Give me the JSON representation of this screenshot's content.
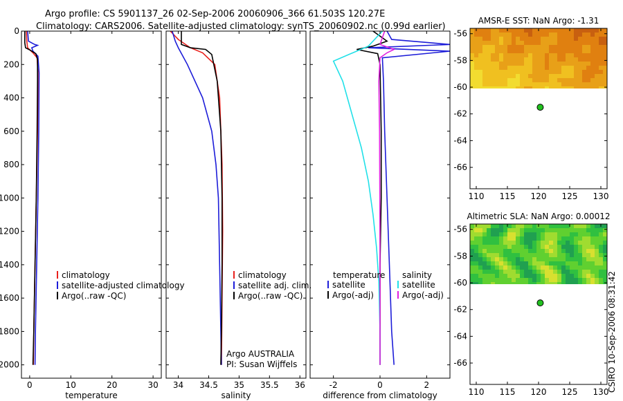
{
  "header": {
    "title_line1": "Argo profile: CS 5901137_26 02-Sep-2006 20060906_366 61.503S 120.27E",
    "title_line2": "Climatology: CARS2006. Satellite-adjusted climatology: synTS_20060902.nc (0.99d earlier)"
  },
  "footer_vertical": "CSIRO 10-Sep-2006 08:31:42",
  "colors": {
    "climatology": "#e8201c",
    "satellite": "#1c1cd8",
    "argo": "#000000",
    "temp_diff_sat": "#1c1cd8",
    "sal_diff_sat": "#20e0e8",
    "sal_diff_argo": "#e020e0"
  },
  "chart_data": [
    {
      "type": "line",
      "name": "temperature-profile",
      "xlabel": "temperature",
      "ylabel": "",
      "xlim": [
        -2,
        32
      ],
      "ylim": [
        2080,
        0
      ],
      "y_inverted": true,
      "xticks": [
        0,
        10,
        20,
        30
      ],
      "yticks": [
        0,
        200,
        400,
        600,
        800,
        1000,
        1200,
        1400,
        1600,
        1800,
        2000
      ],
      "legend": [
        "climatology",
        "satellite-adjusted climatology",
        "Argo(..raw -QC)"
      ],
      "series": [
        {
          "name": "climatology",
          "color_key": "climatology",
          "points": [
            [
              -0.8,
              0
            ],
            [
              -0.7,
              60
            ],
            [
              -0.5,
              100
            ],
            [
              0.8,
              130
            ],
            [
              1.8,
              160
            ],
            [
              2.0,
              250
            ],
            [
              1.9,
              600
            ],
            [
              1.6,
              1000
            ],
            [
              1.3,
              1400
            ],
            [
              1.0,
              1800
            ],
            [
              0.9,
              2000
            ]
          ]
        },
        {
          "name": "satellite-adjusted climatology",
          "color_key": "satellite",
          "points": [
            [
              -0.5,
              0
            ],
            [
              -0.3,
              60
            ],
            [
              1.2,
              80
            ],
            [
              1.9,
              85
            ],
            [
              0.5,
              100
            ],
            [
              0.8,
              120
            ],
            [
              2.0,
              150
            ],
            [
              2.3,
              250
            ],
            [
              2.2,
              600
            ],
            [
              2.0,
              1000
            ],
            [
              1.7,
              1400
            ],
            [
              1.4,
              1800
            ],
            [
              1.3,
              2000
            ]
          ]
        },
        {
          "name": "Argo(..raw -QC)",
          "color_key": "argo",
          "points": [
            [
              -1.2,
              0
            ],
            [
              -1.2,
              70
            ],
            [
              -1.0,
              100
            ],
            [
              0.2,
              115
            ],
            [
              1.5,
              135
            ],
            [
              1.9,
              170
            ],
            [
              1.9,
              300
            ],
            [
              1.8,
              600
            ],
            [
              1.6,
              1000
            ],
            [
              1.3,
              1400
            ],
            [
              1.0,
              1800
            ],
            [
              0.8,
              2000
            ]
          ]
        }
      ]
    },
    {
      "type": "line",
      "name": "salinity-profile",
      "xlabel": "salinity",
      "ylabel": "",
      "xlim": [
        33.8,
        36.1
      ],
      "ylim": [
        2080,
        0
      ],
      "y_inverted": true,
      "xticks": [
        34,
        34.5,
        35,
        35.5,
        36
      ],
      "legend": [
        "climatology",
        "satellite adj. clim.",
        "Argo(..raw -QC)"
      ],
      "annotations": [
        "Argo AUSTRALIA",
        "PI: Susan Wijffels"
      ],
      "series": [
        {
          "name": "climatology",
          "color_key": "climatology",
          "points": [
            [
              33.87,
              0
            ],
            [
              34.0,
              50
            ],
            [
              34.2,
              100
            ],
            [
              34.4,
              130
            ],
            [
              34.6,
              200
            ],
            [
              34.68,
              400
            ],
            [
              34.72,
              800
            ],
            [
              34.73,
              1200
            ],
            [
              34.72,
              1600
            ],
            [
              34.71,
              2000
            ]
          ]
        },
        {
          "name": "satellite adj. clim.",
          "color_key": "satellite",
          "points": [
            [
              33.9,
              0
            ],
            [
              33.95,
              60
            ],
            [
              34.0,
              100
            ],
            [
              34.15,
              200
            ],
            [
              34.4,
              400
            ],
            [
              34.55,
              600
            ],
            [
              34.62,
              800
            ],
            [
              34.66,
              1000
            ],
            [
              34.68,
              1400
            ],
            [
              34.7,
              1800
            ],
            [
              34.71,
              2000
            ]
          ]
        },
        {
          "name": "Argo(..raw -QC)",
          "color_key": "argo",
          "points": [
            [
              34.05,
              0
            ],
            [
              34.05,
              80
            ],
            [
              34.2,
              100
            ],
            [
              34.45,
              110
            ],
            [
              34.55,
              140
            ],
            [
              34.64,
              300
            ],
            [
              34.7,
              600
            ],
            [
              34.72,
              1000
            ],
            [
              34.72,
              1400
            ],
            [
              34.71,
              1800
            ],
            [
              34.7,
              2000
            ]
          ]
        }
      ]
    },
    {
      "type": "line",
      "name": "difference-profile",
      "xlabel": "difference from climatology",
      "ylabel": "",
      "xlim": [
        -3,
        3
      ],
      "ylim": [
        2080,
        0
      ],
      "y_inverted": true,
      "xticks": [
        -2,
        0,
        2
      ],
      "legend": [
        "temperature",
        "satellite",
        "Argo(-adj)",
        "salinity",
        "satellite",
        "Argo(-adj)"
      ],
      "series": [
        {
          "name": "temperature satellite",
          "color_key": "temp_diff_sat",
          "points": [
            [
              0.3,
              0
            ],
            [
              0.5,
              50
            ],
            [
              3.0,
              80
            ],
            [
              -0.5,
              100
            ],
            [
              3.0,
              120
            ],
            [
              0.1,
              160
            ],
            [
              0.15,
              300
            ],
            [
              0.2,
              600
            ],
            [
              0.3,
              1000
            ],
            [
              0.4,
              1400
            ],
            [
              0.5,
              1800
            ],
            [
              0.6,
              2000
            ]
          ]
        },
        {
          "name": "temperature Argo(-adj)",
          "color_key": "argo",
          "points": [
            [
              -0.3,
              0
            ],
            [
              0.3,
              60
            ],
            [
              -0.3,
              90
            ],
            [
              -1.0,
              110
            ],
            [
              -0.1,
              135
            ],
            [
              0.0,
              200
            ],
            [
              0.05,
              600
            ],
            [
              0.05,
              1000
            ],
            [
              0.0,
              1400
            ],
            [
              0.0,
              1800
            ],
            [
              0.0,
              2000
            ]
          ]
        },
        {
          "name": "salinity satellite",
          "color_key": "sal_diff_sat",
          "points": [
            [
              0.1,
              0
            ],
            [
              -0.5,
              90
            ],
            [
              -2.0,
              180
            ],
            [
              -1.6,
              300
            ],
            [
              -1.2,
              500
            ],
            [
              -0.8,
              700
            ],
            [
              -0.5,
              900
            ],
            [
              -0.3,
              1100
            ],
            [
              -0.15,
              1300
            ],
            [
              -0.05,
              1500
            ],
            [
              0.0,
              1800
            ],
            [
              0.0,
              2000
            ]
          ]
        },
        {
          "name": "salinity Argo(-adj)",
          "color_key": "sal_diff_argo",
          "points": [
            [
              0.2,
              0
            ],
            [
              0.0,
              80
            ],
            [
              0.6,
              110
            ],
            [
              0.3,
              130
            ],
            [
              0.0,
              160
            ],
            [
              -0.05,
              300
            ],
            [
              -0.02,
              600
            ],
            [
              -0.01,
              1000
            ],
            [
              0.0,
              1400
            ],
            [
              0.0,
              1800
            ],
            [
              0.0,
              2000
            ]
          ]
        }
      ]
    },
    {
      "type": "heatmap",
      "name": "amsre-sst-map",
      "title": "AMSR-E SST: NaN Argo: -1.31",
      "xlim": [
        109,
        131
      ],
      "ylim": [
        -67.6,
        -55.6
      ],
      "xticks": [
        110,
        115,
        120,
        125,
        130
      ],
      "yticks": [
        -56,
        -58,
        -60,
        -62,
        -64,
        -66
      ],
      "field_lat_range": [
        -60.1,
        -55.6
      ],
      "palette": [
        "#f2dc30",
        "#f0c020",
        "#e8a018",
        "#e08010",
        "#c86010"
      ],
      "argo_position": {
        "lon": 120.27,
        "lat": -61.503
      }
    },
    {
      "type": "heatmap",
      "name": "altimetric-sla-map",
      "title": "Altimetric SLA: NaN Argo: 0.00012",
      "xlim": [
        109,
        131
      ],
      "ylim": [
        -67.6,
        -55.6
      ],
      "xticks": [
        110,
        115,
        120,
        125,
        130
      ],
      "yticks": [
        -56,
        -58,
        -60,
        -62,
        -64,
        -66
      ],
      "field_lat_range": [
        -60.1,
        -55.6
      ],
      "palette": [
        "#20a050",
        "#30c040",
        "#60d030",
        "#a0dc30",
        "#d8e030"
      ],
      "argo_position": {
        "lon": 120.27,
        "lat": -61.503
      }
    }
  ]
}
